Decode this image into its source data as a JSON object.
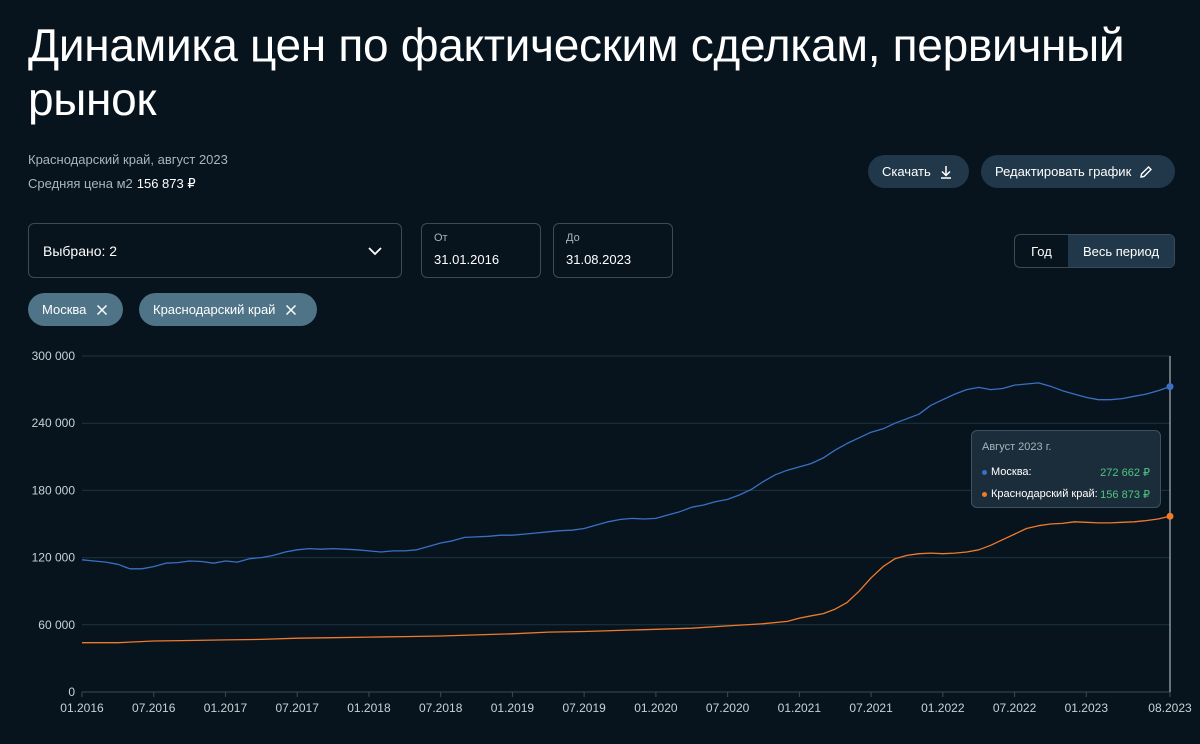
{
  "page": {
    "title": "Динамика цен по фактическим сделкам, первичный рынок",
    "subtitle": "Краснодарский край, август 2023",
    "avg_label": "Средняя цена м2",
    "avg_value": "156 873 ₽"
  },
  "toolbar": {
    "download_label": "Скачать",
    "edit_label": "Редактировать график"
  },
  "filters": {
    "selected_label": "Выбрано: 2",
    "from_label": "От",
    "from_value": "31.01.2016",
    "to_label": "До",
    "to_value": "31.08.2023",
    "period_year": "Год",
    "period_all": "Весь период",
    "chips": [
      "Москва",
      "Краснодарский край"
    ]
  },
  "tooltip": {
    "title": "Август 2023 г.",
    "rows": [
      {
        "name": "Москва:",
        "value": "272 662 ₽"
      },
      {
        "name": "Краснодарский край:",
        "value": "156 873 ₽"
      }
    ]
  },
  "colors": {
    "moscow": "#3a6fc4",
    "krasnodar": "#f07a2a",
    "grid": "#1e3341",
    "axis_text": "#c9d1d7"
  },
  "chart_data": {
    "type": "line",
    "ylim": [
      0,
      300000
    ],
    "y_ticks": [
      "0",
      "60 000",
      "120 000",
      "180 000",
      "240 000",
      "300 000"
    ],
    "x_ticks": [
      "01.2016",
      "07.2016",
      "01.2017",
      "07.2017",
      "01.2018",
      "07.2018",
      "01.2019",
      "07.2019",
      "01.2020",
      "07.2020",
      "01.2021",
      "07.2021",
      "01.2022",
      "07.2022",
      "01.2023",
      "08.2023"
    ],
    "x_start": "2016-01",
    "x_end": "2023-08",
    "grid": true,
    "series": [
      {
        "name": "Москва",
        "points": [
          [
            "2016-01",
            118000
          ],
          [
            "2016-02",
            117000
          ],
          [
            "2016-03",
            116000
          ],
          [
            "2016-04",
            114000
          ],
          [
            "2016-05",
            110000
          ],
          [
            "2016-06",
            110000
          ],
          [
            "2016-07",
            112000
          ],
          [
            "2016-08",
            115000
          ],
          [
            "2016-09",
            115500
          ],
          [
            "2016-10",
            117000
          ],
          [
            "2016-11",
            116500
          ],
          [
            "2016-12",
            115000
          ],
          [
            "2017-01",
            117000
          ],
          [
            "2017-02",
            116000
          ],
          [
            "2017-03",
            119000
          ],
          [
            "2017-04",
            120000
          ],
          [
            "2017-05",
            122000
          ],
          [
            "2017-06",
            125000
          ],
          [
            "2017-07",
            127000
          ],
          [
            "2017-08",
            128000
          ],
          [
            "2017-09",
            127500
          ],
          [
            "2017-10",
            128000
          ],
          [
            "2017-11",
            127500
          ],
          [
            "2017-12",
            127000
          ],
          [
            "2018-01",
            126000
          ],
          [
            "2018-02",
            125000
          ],
          [
            "2018-03",
            126000
          ],
          [
            "2018-04",
            126000
          ],
          [
            "2018-05",
            127000
          ],
          [
            "2018-06",
            130000
          ],
          [
            "2018-07",
            133000
          ],
          [
            "2018-08",
            135000
          ],
          [
            "2018-09",
            138000
          ],
          [
            "2018-10",
            138500
          ],
          [
            "2018-11",
            139000
          ],
          [
            "2018-12",
            140000
          ],
          [
            "2019-01",
            140000
          ],
          [
            "2019-02",
            141000
          ],
          [
            "2019-03",
            142000
          ],
          [
            "2019-04",
            143000
          ],
          [
            "2019-05",
            144000
          ],
          [
            "2019-06",
            144500
          ],
          [
            "2019-07",
            146000
          ],
          [
            "2019-08",
            149000
          ],
          [
            "2019-09",
            152000
          ],
          [
            "2019-10",
            154000
          ],
          [
            "2019-11",
            155000
          ],
          [
            "2019-12",
            154500
          ],
          [
            "2020-01",
            155000
          ],
          [
            "2020-02",
            158000
          ],
          [
            "2020-03",
            161000
          ],
          [
            "2020-04",
            165000
          ],
          [
            "2020-05",
            167000
          ],
          [
            "2020-06",
            170000
          ],
          [
            "2020-07",
            172000
          ],
          [
            "2020-08",
            176000
          ],
          [
            "2020-09",
            181000
          ],
          [
            "2020-10",
            188000
          ],
          [
            "2020-11",
            194000
          ],
          [
            "2020-12",
            198000
          ],
          [
            "2021-01",
            201000
          ],
          [
            "2021-02",
            204000
          ],
          [
            "2021-03",
            209000
          ],
          [
            "2021-04",
            216000
          ],
          [
            "2021-05",
            222000
          ],
          [
            "2021-06",
            227000
          ],
          [
            "2021-07",
            232000
          ],
          [
            "2021-08",
            235000
          ],
          [
            "2021-09",
            240000
          ],
          [
            "2021-10",
            244000
          ],
          [
            "2021-11",
            248000
          ],
          [
            "2021-12",
            256000
          ],
          [
            "2022-01",
            261000
          ],
          [
            "2022-02",
            266000
          ],
          [
            "2022-03",
            270000
          ],
          [
            "2022-04",
            272000
          ],
          [
            "2022-05",
            270000
          ],
          [
            "2022-06",
            271000
          ],
          [
            "2022-07",
            274000
          ],
          [
            "2022-08",
            275000
          ],
          [
            "2022-09",
            276000
          ],
          [
            "2022-10",
            273000
          ],
          [
            "2022-11",
            269000
          ],
          [
            "2022-12",
            266000
          ],
          [
            "2023-01",
            263000
          ],
          [
            "2023-02",
            261000
          ],
          [
            "2023-03",
            261000
          ],
          [
            "2023-04",
            262000
          ],
          [
            "2023-05",
            264000
          ],
          [
            "2023-06",
            266000
          ],
          [
            "2023-07",
            269000
          ],
          [
            "2023-08",
            272662
          ]
        ]
      },
      {
        "name": "Краснодарский край",
        "points": [
          [
            "2016-01",
            44000
          ],
          [
            "2016-04",
            44000
          ],
          [
            "2016-07",
            45500
          ],
          [
            "2016-10",
            46000
          ],
          [
            "2017-01",
            46500
          ],
          [
            "2017-04",
            47000
          ],
          [
            "2017-07",
            48000
          ],
          [
            "2017-10",
            48500
          ],
          [
            "2018-01",
            49000
          ],
          [
            "2018-04",
            49500
          ],
          [
            "2018-07",
            50000
          ],
          [
            "2018-10",
            51000
          ],
          [
            "2019-01",
            52000
          ],
          [
            "2019-04",
            53500
          ],
          [
            "2019-07",
            54000
          ],
          [
            "2019-10",
            55000
          ],
          [
            "2020-01",
            56000
          ],
          [
            "2020-04",
            57000
          ],
          [
            "2020-07",
            59000
          ],
          [
            "2020-10",
            61000
          ],
          [
            "2020-12",
            63000
          ],
          [
            "2021-01",
            66000
          ],
          [
            "2021-02",
            68000
          ],
          [
            "2021-03",
            70000
          ],
          [
            "2021-04",
            74000
          ],
          [
            "2021-05",
            80000
          ],
          [
            "2021-06",
            90000
          ],
          [
            "2021-07",
            102000
          ],
          [
            "2021-08",
            112000
          ],
          [
            "2021-09",
            119000
          ],
          [
            "2021-10",
            122000
          ],
          [
            "2021-11",
            123500
          ],
          [
            "2021-12",
            124000
          ],
          [
            "2022-01",
            123500
          ],
          [
            "2022-02",
            124000
          ],
          [
            "2022-03",
            125000
          ],
          [
            "2022-04",
            127000
          ],
          [
            "2022-05",
            131000
          ],
          [
            "2022-06",
            136000
          ],
          [
            "2022-07",
            141000
          ],
          [
            "2022-08",
            146000
          ],
          [
            "2022-09",
            148500
          ],
          [
            "2022-10",
            150000
          ],
          [
            "2022-11",
            150500
          ],
          [
            "2022-12",
            152000
          ],
          [
            "2023-01",
            151500
          ],
          [
            "2023-02",
            151000
          ],
          [
            "2023-03",
            151000
          ],
          [
            "2023-04",
            151500
          ],
          [
            "2023-05",
            152000
          ],
          [
            "2023-06",
            153000
          ],
          [
            "2023-07",
            154500
          ],
          [
            "2023-08",
            156873
          ]
        ]
      }
    ]
  }
}
